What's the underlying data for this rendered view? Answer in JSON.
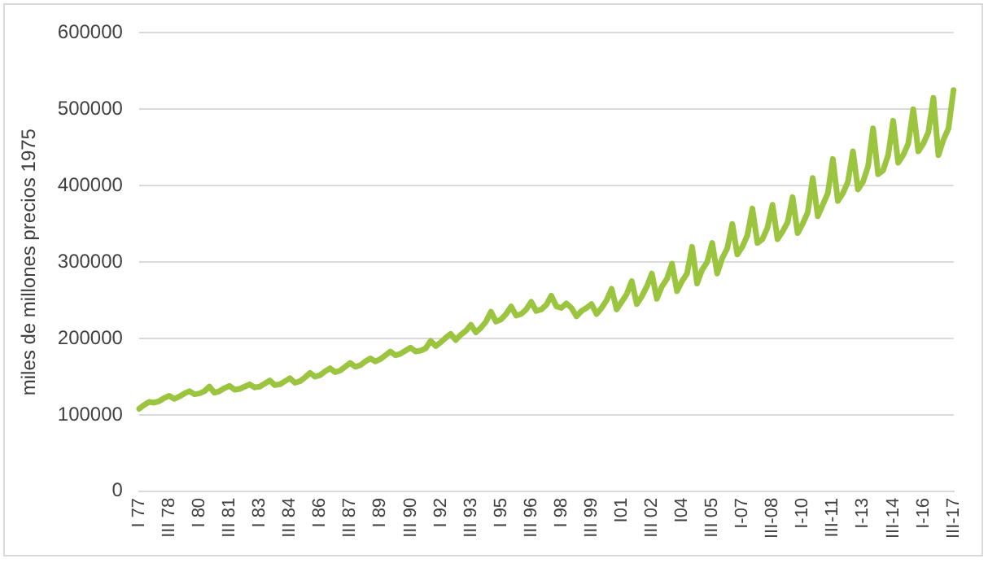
{
  "chart_data": {
    "type": "line",
    "ylabel": "miles de millones precios 1975",
    "categories": [
      "I 77",
      null,
      null,
      null,
      null,
      null,
      "III 78",
      null,
      null,
      null,
      null,
      null,
      "I 80",
      null,
      null,
      null,
      null,
      null,
      "III 81",
      null,
      null,
      null,
      null,
      null,
      "I 83",
      null,
      null,
      null,
      null,
      null,
      "III 84",
      null,
      null,
      null,
      null,
      null,
      "I 86",
      null,
      null,
      null,
      null,
      null,
      "III 87",
      null,
      null,
      null,
      null,
      null,
      "I 89",
      null,
      null,
      null,
      null,
      null,
      "III 90",
      null,
      null,
      null,
      null,
      null,
      "I 92",
      null,
      null,
      null,
      null,
      null,
      "III 93",
      null,
      null,
      null,
      null,
      null,
      "I 95",
      null,
      null,
      null,
      null,
      null,
      "III 96",
      null,
      null,
      null,
      null,
      null,
      "I 98",
      null,
      null,
      null,
      null,
      null,
      "III 99",
      null,
      null,
      null,
      null,
      null,
      "I01",
      null,
      null,
      null,
      null,
      null,
      "III 02",
      null,
      null,
      null,
      null,
      null,
      "I04",
      null,
      null,
      null,
      null,
      null,
      "III 05",
      null,
      null,
      null,
      null,
      null,
      "I-07",
      null,
      null,
      null,
      null,
      null,
      "III-08",
      null,
      null,
      null,
      null,
      null,
      "I-10",
      null,
      null,
      null,
      null,
      null,
      "III-11",
      null,
      null,
      null,
      null,
      null,
      "I-13",
      null,
      null,
      null,
      null,
      null,
      "III-14",
      null,
      null,
      null,
      null,
      null,
      "I-16",
      null,
      null,
      null,
      null,
      null,
      "III-17"
    ],
    "series": [
      {
        "color": "#9bc43f",
        "values": [
          108000,
          113000,
          117000,
          116000,
          118000,
          122000,
          125000,
          121000,
          124000,
          128000,
          131000,
          127000,
          128000,
          131000,
          137000,
          129000,
          131000,
          135000,
          138000,
          133000,
          134000,
          137000,
          140000,
          136000,
          137000,
          141000,
          145000,
          139000,
          140000,
          144000,
          148000,
          142000,
          144000,
          149000,
          155000,
          150000,
          152000,
          157000,
          161000,
          156000,
          158000,
          163000,
          168000,
          163000,
          165000,
          170000,
          174000,
          170000,
          173000,
          178000,
          183000,
          178000,
          180000,
          184000,
          188000,
          183000,
          184000,
          187000,
          197000,
          190000,
          195000,
          201000,
          206000,
          198000,
          205000,
          210000,
          218000,
          208000,
          214000,
          222000,
          235000,
          222000,
          225000,
          232000,
          242000,
          230000,
          232000,
          238000,
          248000,
          236000,
          238000,
          244000,
          256000,
          242000,
          240000,
          246000,
          240000,
          229000,
          236000,
          240000,
          245000,
          232000,
          240000,
          250000,
          265000,
          238000,
          248000,
          258000,
          275000,
          245000,
          255000,
          268000,
          285000,
          252000,
          268000,
          278000,
          298000,
          262000,
          275000,
          285000,
          320000,
          272000,
          290000,
          300000,
          325000,
          285000,
          305000,
          318000,
          350000,
          310000,
          320000,
          335000,
          370000,
          325000,
          330000,
          345000,
          375000,
          330000,
          340000,
          352000,
          385000,
          338000,
          350000,
          365000,
          410000,
          360000,
          375000,
          390000,
          435000,
          380000,
          390000,
          405000,
          445000,
          395000,
          405000,
          425000,
          475000,
          415000,
          420000,
          440000,
          485000,
          430000,
          440000,
          455000,
          500000,
          445000,
          455000,
          470000,
          515000,
          440000,
          460000,
          475000,
          525000
        ]
      }
    ],
    "ylim": [
      0,
      600000
    ],
    "yticks": [
      0,
      100000,
      200000,
      300000,
      400000,
      500000,
      600000
    ],
    "grid": "y",
    "legend": false,
    "marker": "none",
    "line_style": "solid"
  }
}
